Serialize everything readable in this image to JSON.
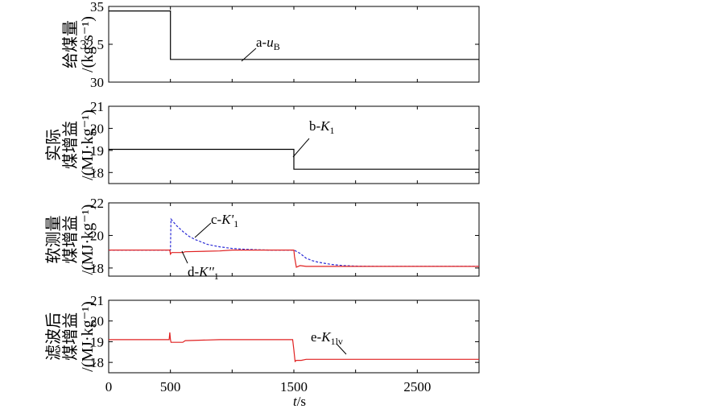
{
  "figure": {
    "xlabel_italic": "t",
    "xlabel_unit": "/s"
  },
  "chart_data": [
    {
      "type": "line",
      "xlim": [
        0,
        3000
      ],
      "ylim": [
        30,
        35
      ],
      "yticks": [
        "30",
        "32.5",
        "35"
      ],
      "ylabel_lines": [
        "给煤量",
        "/(kg·s⁻¹)"
      ],
      "series": [
        {
          "name": "a-uB",
          "color": "#000000",
          "dash": "",
          "x": [
            0,
            500,
            500,
            3000
          ],
          "y": [
            34.7,
            34.7,
            31.5,
            31.5
          ]
        }
      ],
      "annotation": {
        "prefix": "a-",
        "italic": "u",
        "sub": "B",
        "x": 650,
        "y": 31.5
      }
    },
    {
      "type": "line",
      "xlim": [
        0,
        3000
      ],
      "ylim": [
        17.5,
        21
      ],
      "yticks": [
        "18",
        "19",
        "20",
        "21"
      ],
      "ylabel_lines": [
        "实际",
        "煤增益",
        "/(MJ·kg⁻¹)"
      ],
      "series": [
        {
          "name": "b-K1",
          "color": "#000000",
          "dash": "",
          "x": [
            0,
            1500,
            1500,
            3000
          ],
          "y": [
            19.05,
            19.05,
            18.15,
            18.15
          ]
        }
      ],
      "annotation": {
        "prefix": "b-",
        "italic": "K",
        "sub": "1",
        "x": 1520,
        "y": 18.4
      }
    },
    {
      "type": "line",
      "xlim": [
        0,
        3000
      ],
      "ylim": [
        17.5,
        22
      ],
      "yticks": [
        "18",
        "20",
        "22"
      ],
      "ylabel_lines": [
        "软测量",
        "煤增益",
        "/(MJ·kg⁻¹)"
      ],
      "series": [
        {
          "name": "c-K'1",
          "color": "#2b2bd6",
          "dash": "3,2",
          "x": [
            0,
            500,
            505,
            550,
            600,
            650,
            700,
            750,
            800,
            900,
            1000,
            1100,
            1200,
            1300,
            1400,
            1500,
            1550,
            1600,
            1650,
            1700,
            1800,
            1900,
            2000,
            2200,
            2500,
            3000
          ],
          "y": [
            19.1,
            19.1,
            21.0,
            20.6,
            20.25,
            19.95,
            19.75,
            19.6,
            19.45,
            19.3,
            19.2,
            19.15,
            19.12,
            19.1,
            19.1,
            19.1,
            18.9,
            18.6,
            18.45,
            18.35,
            18.22,
            18.15,
            18.12,
            18.1,
            18.1,
            18.1
          ]
        },
        {
          "name": "d-K''1",
          "color": "#e02020",
          "dash": "",
          "x": [
            0,
            495,
            500,
            510,
            600,
            620,
            900,
            1000,
            1500,
            1505,
            1520,
            1550,
            1600,
            1700,
            3000
          ],
          "y": [
            19.1,
            19.1,
            18.85,
            18.95,
            18.95,
            19.0,
            19.05,
            19.1,
            19.1,
            18.7,
            18.05,
            18.15,
            18.1,
            18.1,
            18.1
          ]
        }
      ],
      "annotations": [
        {
          "prefix": "c-",
          "italic": "K'",
          "sub": "1",
          "x": 720,
          "y": 19.9
        },
        {
          "prefix": "d-",
          "italic": "K''",
          "sub": "1",
          "x": 630,
          "y": 18.98
        }
      ]
    },
    {
      "type": "line",
      "xlim": [
        0,
        3000
      ],
      "ylim": [
        17.5,
        21
      ],
      "yticks": [
        "18",
        "19",
        "20",
        "21"
      ],
      "xticks": [
        "0",
        "500",
        "1500",
        "2500"
      ],
      "ylabel_lines": [
        "滤波后",
        "煤增益",
        "/(MJ·kg⁻¹)"
      ],
      "series": [
        {
          "name": "e-K1lv",
          "color": "#e02020",
          "dash": "",
          "x": [
            0,
            490,
            495,
            500,
            505,
            510,
            600,
            620,
            900,
            1000,
            1490,
            1500,
            1510,
            1520,
            1560,
            1600,
            1700,
            3000
          ],
          "y": [
            19.1,
            19.1,
            19.45,
            19.1,
            18.97,
            18.97,
            18.97,
            19.05,
            19.1,
            19.1,
            19.1,
            18.6,
            18.05,
            18.1,
            18.1,
            18.15,
            18.15,
            18.15
          ]
        }
      ],
      "annotation": {
        "prefix": "e-",
        "italic": "K",
        "sub": "1lv",
        "x": 1920,
        "y": 18.3
      }
    }
  ]
}
